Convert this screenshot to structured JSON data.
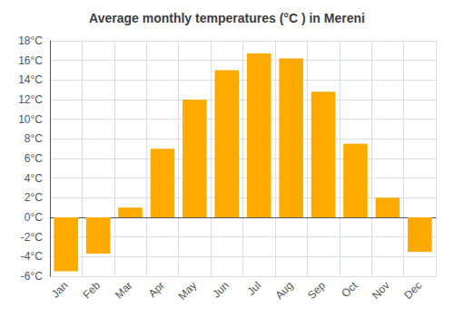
{
  "chart_data": {
    "type": "bar",
    "title": "Average monthly temperatures (°C ) in Mereni",
    "categories": [
      "Jan",
      "Feb",
      "Mar",
      "Apr",
      "May",
      "Jun",
      "Jul",
      "Aug",
      "Sep",
      "Oct",
      "Nov",
      "Dec"
    ],
    "values": [
      -5.5,
      -3.7,
      1.0,
      7.0,
      12.0,
      15.0,
      16.7,
      16.2,
      12.8,
      7.5,
      2.0,
      -3.5
    ],
    "color": "#FFAA00",
    "ylim": [
      -6,
      18
    ],
    "yticks": [
      {
        "value": -6,
        "label": "-6°C"
      },
      {
        "value": -4,
        "label": "-4°C"
      },
      {
        "value": -2,
        "label": "-2°C"
      },
      {
        "value": 0,
        "label": "0°C"
      },
      {
        "value": 2,
        "label": "2°C"
      },
      {
        "value": 4,
        "label": "4°C"
      },
      {
        "value": 6,
        "label": "6°C"
      },
      {
        "value": 8,
        "label": "8°C"
      },
      {
        "value": 10,
        "label": "10°C"
      },
      {
        "value": 12,
        "label": "12°C"
      },
      {
        "value": 14,
        "label": "14°C"
      },
      {
        "value": 16,
        "label": "16°C"
      },
      {
        "value": 18,
        "label": "18°C"
      }
    ],
    "grid": true
  }
}
